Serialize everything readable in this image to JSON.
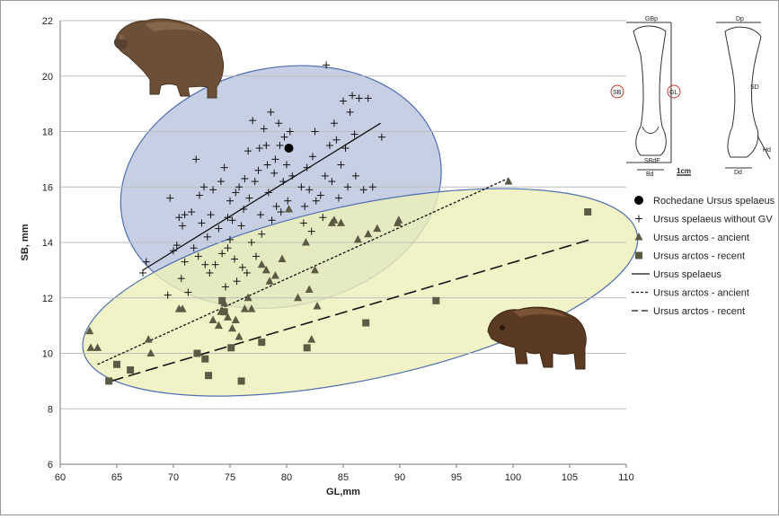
{
  "chart_data": {
    "type": "scatter",
    "xlabel": "GL,mm",
    "ylabel": "SB, mm",
    "xlim": [
      60,
      110
    ],
    "ylim": [
      6,
      22
    ],
    "x_ticks": [
      60,
      65,
      70,
      75,
      80,
      85,
      90,
      95,
      100,
      105,
      110
    ],
    "y_ticks": [
      6,
      8,
      10,
      12,
      14,
      16,
      18,
      20,
      22
    ],
    "grid": "horizontal",
    "legend_position": "right",
    "colors": {
      "ellipse_blue_fill": "#b8c3dc",
      "ellipse_blue_stroke": "#4f6fb0",
      "ellipse_yellow_fill": "#eef0b8",
      "ellipse_yellow_stroke": "#4f6fb0",
      "marker": "#5b5b45",
      "plus": "#111111"
    },
    "legend": [
      {
        "label": "Rochedane Ursus spelaeus",
        "symbol": "circle"
      },
      {
        "label": "Ursus spelaeus without GV",
        "symbol": "plus"
      },
      {
        "label": "Ursus arctos - ancient",
        "symbol": "triangle"
      },
      {
        "label": "Ursus arctos - recent",
        "symbol": "square"
      },
      {
        "label": "Ursus spelaeus",
        "symbol": "solid-line"
      },
      {
        "label": "Ursus arctos - ancient",
        "symbol": "dotted-line"
      },
      {
        "label": "Ursus arctos - recent",
        "symbol": "dashed-line"
      }
    ],
    "series": [
      {
        "name": "Rochedane Ursus spelaeus",
        "marker": "circle",
        "points": [
          [
            80.2,
            17.4
          ]
        ]
      },
      {
        "name": "Ursus spelaeus without GV",
        "marker": "plus",
        "points": [
          [
            67.3,
            12.9
          ],
          [
            67.6,
            13.3
          ],
          [
            69.5,
            12.1
          ],
          [
            69.7,
            15.6
          ],
          [
            70.0,
            13.7
          ],
          [
            70.3,
            13.9
          ],
          [
            70.5,
            14.9
          ],
          [
            70.8,
            14.6
          ],
          [
            71.0,
            15.0
          ],
          [
            70.7,
            12.7
          ],
          [
            71.3,
            12.2
          ],
          [
            71.0,
            13.3
          ],
          [
            71.6,
            15.1
          ],
          [
            71.8,
            13.8
          ],
          [
            72.0,
            17.0
          ],
          [
            72.2,
            13.5
          ],
          [
            72.3,
            15.7
          ],
          [
            72.5,
            14.7
          ],
          [
            72.7,
            16.0
          ],
          [
            72.8,
            13.2
          ],
          [
            73.0,
            14.2
          ],
          [
            73.2,
            12.9
          ],
          [
            73.3,
            15.0
          ],
          [
            73.5,
            15.9
          ],
          [
            73.7,
            13.2
          ],
          [
            74.0,
            14.5
          ],
          [
            74.2,
            16.2
          ],
          [
            74.3,
            13.6
          ],
          [
            74.5,
            16.7
          ],
          [
            74.6,
            12.4
          ],
          [
            74.8,
            13.8
          ],
          [
            74.8,
            14.9
          ],
          [
            75.0,
            14.1
          ],
          [
            75.0,
            15.5
          ],
          [
            75.2,
            14.8
          ],
          [
            75.4,
            13.4
          ],
          [
            75.5,
            15.8
          ],
          [
            75.6,
            12.6
          ],
          [
            75.8,
            16.0
          ],
          [
            76.0,
            14.6
          ],
          [
            76.1,
            13.1
          ],
          [
            76.2,
            15.2
          ],
          [
            76.3,
            16.3
          ],
          [
            76.5,
            12.9
          ],
          [
            76.6,
            17.3
          ],
          [
            76.7,
            15.6
          ],
          [
            76.9,
            14.0
          ],
          [
            77.0,
            18.4
          ],
          [
            77.2,
            16.2
          ],
          [
            77.3,
            13.5
          ],
          [
            77.5,
            16.6
          ],
          [
            77.6,
            17.4
          ],
          [
            77.7,
            15.0
          ],
          [
            77.8,
            14.3
          ],
          [
            78.0,
            18.1
          ],
          [
            78.2,
            17.5
          ],
          [
            78.3,
            16.8
          ],
          [
            78.4,
            15.8
          ],
          [
            78.6,
            18.7
          ],
          [
            78.7,
            14.8
          ],
          [
            78.9,
            16.5
          ],
          [
            79.0,
            17.0
          ],
          [
            79.1,
            15.3
          ],
          [
            79.3,
            18.3
          ],
          [
            79.4,
            17.5
          ],
          [
            79.5,
            15.1
          ],
          [
            79.7,
            16.2
          ],
          [
            79.8,
            17.8
          ],
          [
            80.0,
            16.8
          ],
          [
            80.1,
            15.5
          ],
          [
            80.3,
            18.0
          ],
          [
            80.5,
            16.4
          ],
          [
            81.3,
            16.0
          ],
          [
            81.5,
            14.7
          ],
          [
            81.6,
            15.3
          ],
          [
            81.8,
            16.7
          ],
          [
            82.0,
            15.9
          ],
          [
            82.2,
            14.4
          ],
          [
            82.3,
            17.1
          ],
          [
            82.5,
            18.0
          ],
          [
            82.6,
            15.5
          ],
          [
            83.0,
            15.7
          ],
          [
            83.2,
            14.9
          ],
          [
            83.4,
            16.4
          ],
          [
            83.5,
            20.4
          ],
          [
            83.8,
            17.5
          ],
          [
            84.0,
            16.2
          ],
          [
            84.2,
            18.3
          ],
          [
            84.4,
            17.7
          ],
          [
            84.6,
            15.6
          ],
          [
            84.8,
            16.8
          ],
          [
            85.0,
            19.1
          ],
          [
            85.2,
            17.4
          ],
          [
            85.4,
            16.0
          ],
          [
            85.6,
            18.7
          ],
          [
            85.8,
            19.3
          ],
          [
            86.0,
            17.9
          ],
          [
            86.1,
            16.4
          ],
          [
            86.4,
            19.2
          ],
          [
            86.8,
            15.9
          ],
          [
            87.2,
            19.2
          ],
          [
            87.6,
            16.0
          ],
          [
            88.4,
            17.8
          ]
        ]
      },
      {
        "name": "Ursus arctos - ancient",
        "marker": "triangle",
        "points": [
          [
            62.6,
            10.8
          ],
          [
            62.7,
            10.2
          ],
          [
            63.3,
            10.2
          ],
          [
            67.8,
            10.5
          ],
          [
            68.0,
            10.0
          ],
          [
            70.5,
            11.6
          ],
          [
            70.8,
            11.6
          ],
          [
            73.5,
            11.2
          ],
          [
            74.0,
            11.0
          ],
          [
            74.2,
            11.5
          ],
          [
            74.5,
            11.8
          ],
          [
            74.8,
            11.3
          ],
          [
            75.2,
            10.9
          ],
          [
            75.5,
            11.2
          ],
          [
            75.8,
            10.6
          ],
          [
            76.3,
            11.6
          ],
          [
            76.6,
            12.0
          ],
          [
            76.9,
            11.6
          ],
          [
            77.8,
            13.2
          ],
          [
            78.2,
            13.0
          ],
          [
            78.5,
            12.6
          ],
          [
            79.0,
            12.8
          ],
          [
            79.6,
            13.4
          ],
          [
            80.2,
            15.2
          ],
          [
            81.0,
            12.0
          ],
          [
            81.7,
            14.0
          ],
          [
            82.0,
            12.3
          ],
          [
            82.2,
            10.5
          ],
          [
            82.5,
            13.0
          ],
          [
            82.7,
            11.7
          ],
          [
            84.0,
            14.7
          ],
          [
            84.2,
            14.8
          ],
          [
            84.8,
            14.7
          ],
          [
            86.3,
            14.1
          ],
          [
            87.2,
            14.3
          ],
          [
            88.0,
            14.5
          ],
          [
            89.8,
            14.7
          ],
          [
            89.9,
            14.8
          ],
          [
            99.6,
            16.2
          ]
        ]
      },
      {
        "name": "Ursus arctos - recent",
        "marker": "square",
        "points": [
          [
            64.3,
            9.0
          ],
          [
            65.0,
            9.6
          ],
          [
            66.2,
            9.4
          ],
          [
            72.1,
            10.0
          ],
          [
            72.8,
            9.8
          ],
          [
            73.1,
            9.2
          ],
          [
            74.3,
            11.9
          ],
          [
            74.5,
            11.5
          ],
          [
            75.1,
            10.2
          ],
          [
            76.0,
            9.0
          ],
          [
            77.8,
            10.4
          ],
          [
            81.8,
            10.2
          ],
          [
            87.0,
            11.1
          ],
          [
            93.2,
            11.9
          ],
          [
            106.6,
            15.1
          ]
        ]
      }
    ],
    "trend_lines": [
      {
        "name": "Ursus spelaeus",
        "style": "solid",
        "from": [
          67.3,
          13.0
        ],
        "to": [
          88.3,
          18.3
        ]
      },
      {
        "name": "Ursus arctos - ancient",
        "style": "dotted",
        "from": [
          63.3,
          9.6
        ],
        "to": [
          99.5,
          16.3
        ]
      },
      {
        "name": "Ursus arctos - recent",
        "style": "dashed",
        "from": [
          64.5,
          9.0
        ],
        "to": [
          106.8,
          14.1
        ]
      }
    ],
    "ellipses": [
      {
        "name": "blue",
        "center": [
          79.5,
          16.0
        ],
        "rx_units": 14.3,
        "ry_units": 4.3,
        "rotation_deg": -12
      },
      {
        "name": "yellow",
        "center": [
          86.5,
          12.2
        ],
        "rx_units": 25.0,
        "ry_units": 3.15,
        "rotation_deg": -12
      }
    ],
    "bone_labels": [
      "GBp",
      "SB",
      "GL",
      "SBdE",
      "Bd",
      "1cm",
      "Dp",
      "SD",
      "Hd",
      "Dd"
    ]
  }
}
